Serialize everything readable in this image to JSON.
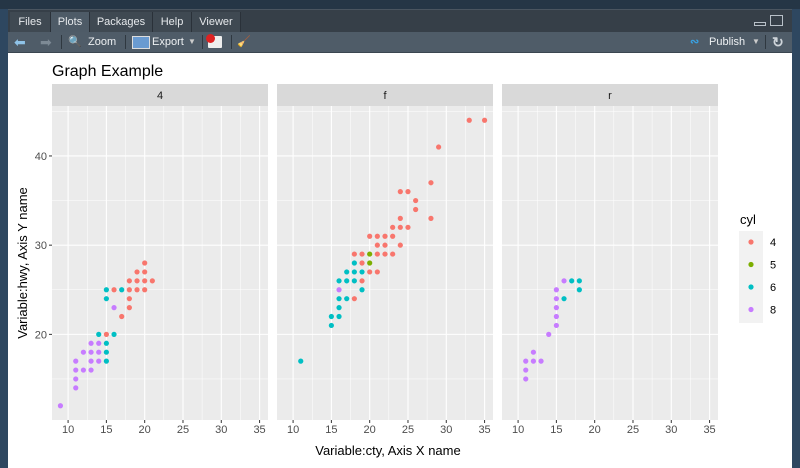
{
  "tabs": [
    {
      "label": "Files"
    },
    {
      "label": "Plots",
      "active": true
    },
    {
      "label": "Packages"
    },
    {
      "label": "Help"
    },
    {
      "label": "Viewer"
    }
  ],
  "toolbar": {
    "zoom_label": "Zoom",
    "export_label": "Export",
    "publish_label": "Publish"
  },
  "icons": {
    "back": "arrow-left-icon",
    "forward": "arrow-right-icon",
    "zoom": "magnifier-icon",
    "export": "image-export-icon",
    "remove": "remove-plot-icon",
    "clear": "broom-icon",
    "publish": "publish-icon",
    "refresh": "refresh-icon"
  },
  "colors": {
    "cyl4": "#F8766D",
    "cyl5": "#7CAE00",
    "cyl6": "#00BFC4",
    "cyl8": "#C77CFF",
    "panel_bg": "#EBEBEB",
    "strip_bg": "#D9D9D9"
  },
  "chart_data": {
    "type": "scatter",
    "title": "Graph Example",
    "xlabel": "Variable:cty, Axis X name",
    "ylabel": "Variable:hwy, Axis Y name",
    "xlim": [
      7.9,
      36.1
    ],
    "ylim": [
      10.4,
      45.6
    ],
    "x_ticks": [
      10,
      15,
      20,
      25,
      30,
      35
    ],
    "y_ticks": [
      20,
      30,
      40
    ],
    "grid": true,
    "legend": {
      "title": "cyl",
      "position": "right",
      "entries": [
        "4",
        "5",
        "6",
        "8"
      ]
    },
    "facets": [
      {
        "label": "4",
        "points": [
          [
            9,
            12,
            8
          ],
          [
            11,
            14,
            8
          ],
          [
            11,
            15,
            8
          ],
          [
            11,
            16,
            8
          ],
          [
            11,
            17,
            8
          ],
          [
            12,
            16,
            8
          ],
          [
            12,
            18,
            8
          ],
          [
            13,
            16,
            8
          ],
          [
            13,
            17,
            8
          ],
          [
            13,
            18,
            8
          ],
          [
            13,
            19,
            8
          ],
          [
            14,
            17,
            8
          ],
          [
            14,
            18,
            8
          ],
          [
            14,
            19,
            8
          ],
          [
            16,
            23,
            8
          ],
          [
            14,
            20,
            6
          ],
          [
            15,
            17,
            6
          ],
          [
            15,
            18,
            6
          ],
          [
            15,
            19,
            6
          ],
          [
            15,
            24,
            6
          ],
          [
            15,
            25,
            6
          ],
          [
            16,
            20,
            6
          ],
          [
            17,
            25,
            6
          ],
          [
            15,
            20,
            4
          ],
          [
            16,
            25,
            4
          ],
          [
            17,
            22,
            4
          ],
          [
            18,
            23,
            4
          ],
          [
            18,
            24,
            4
          ],
          [
            18,
            25,
            4
          ],
          [
            18,
            26,
            4
          ],
          [
            19,
            25,
            4
          ],
          [
            19,
            26,
            4
          ],
          [
            19,
            27,
            4
          ],
          [
            20,
            25,
            4
          ],
          [
            20,
            26,
            4
          ],
          [
            20,
            27,
            4
          ],
          [
            20,
            28,
            4
          ],
          [
            21,
            26,
            4
          ]
        ]
      },
      {
        "label": "f",
        "points": [
          [
            33,
            44,
            4
          ],
          [
            35,
            44,
            4
          ],
          [
            29,
            41,
            4
          ],
          [
            28,
            37,
            4
          ],
          [
            24,
            36,
            4
          ],
          [
            25,
            36,
            4
          ],
          [
            26,
            35,
            4
          ],
          [
            26,
            34,
            4
          ],
          [
            24,
            33,
            4
          ],
          [
            28,
            33,
            4
          ],
          [
            23,
            32,
            4
          ],
          [
            24,
            32,
            4
          ],
          [
            25,
            32,
            4
          ],
          [
            20,
            31,
            4
          ],
          [
            21,
            31,
            4
          ],
          [
            22,
            31,
            4
          ],
          [
            23,
            31,
            4
          ],
          [
            21,
            30,
            4
          ],
          [
            22,
            30,
            4
          ],
          [
            24,
            30,
            4
          ],
          [
            18,
            29,
            4
          ],
          [
            19,
            29,
            4
          ],
          [
            20,
            29,
            5
          ],
          [
            21,
            29,
            4
          ],
          [
            22,
            29,
            4
          ],
          [
            23,
            29,
            4
          ],
          [
            18,
            28,
            6
          ],
          [
            19,
            28,
            4
          ],
          [
            20,
            28,
            5
          ],
          [
            17,
            27,
            6
          ],
          [
            18,
            27,
            6
          ],
          [
            19,
            27,
            6
          ],
          [
            20,
            27,
            4
          ],
          [
            21,
            27,
            4
          ],
          [
            16,
            26,
            6
          ],
          [
            17,
            26,
            6
          ],
          [
            18,
            26,
            6
          ],
          [
            19,
            26,
            4
          ],
          [
            16,
            25,
            8
          ],
          [
            19,
            25,
            6
          ],
          [
            16,
            24,
            6
          ],
          [
            17,
            24,
            6
          ],
          [
            18,
            24,
            4
          ],
          [
            16,
            23,
            6
          ],
          [
            15,
            22,
            6
          ],
          [
            16,
            22,
            6
          ],
          [
            15,
            21,
            6
          ],
          [
            11,
            17,
            6
          ]
        ]
      },
      {
        "label": "r",
        "points": [
          [
            16,
            26,
            8
          ],
          [
            17,
            26,
            6
          ],
          [
            18,
            26,
            6
          ],
          [
            15,
            25,
            8
          ],
          [
            18,
            25,
            6
          ],
          [
            15,
            24,
            8
          ],
          [
            16,
            24,
            6
          ],
          [
            15,
            23,
            8
          ],
          [
            15,
            22,
            8
          ],
          [
            15,
            21,
            8
          ],
          [
            14,
            20,
            8
          ],
          [
            12,
            18,
            8
          ],
          [
            11,
            17,
            8
          ],
          [
            12,
            17,
            8
          ],
          [
            13,
            17,
            8
          ],
          [
            11,
            16,
            8
          ],
          [
            11,
            15,
            8
          ]
        ]
      }
    ]
  }
}
